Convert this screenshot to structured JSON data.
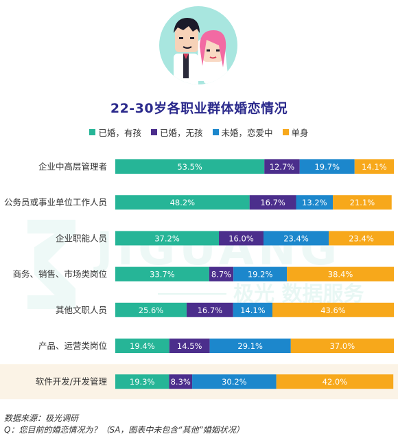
{
  "chart_data": {
    "type": "bar",
    "stacked": true,
    "orientation": "horizontal",
    "title": "22-30岁各职业群体婚恋情况",
    "categories": [
      "企业中高层管理者",
      "公务员或事业单位工作人员",
      "企业职能人员",
      "商务、销售、市场类岗位",
      "其他文职人员",
      "产品、运营类岗位",
      "软件开发/开发管理"
    ],
    "series": [
      {
        "name": "已婚，有孩",
        "color": "#26b597",
        "values": [
          53.5,
          48.2,
          37.2,
          33.7,
          25.6,
          19.4,
          19.3
        ],
        "labels": [
          "53.5%",
          "48.2%",
          "37.2%",
          "33.7%",
          "25.6%",
          "19.4%",
          "19.3%"
        ]
      },
      {
        "name": "已婚，无孩",
        "color": "#4b2e8c",
        "values": [
          12.7,
          16.7,
          16.0,
          8.7,
          16.7,
          14.5,
          8.3
        ],
        "labels": [
          "12.7%",
          "16.7%",
          "16.0%",
          "8.7%",
          "16.7%",
          "14.5%",
          "8.3%"
        ]
      },
      {
        "name": "未婚，恋爱中",
        "color": "#1c87cc",
        "values": [
          19.7,
          13.2,
          23.4,
          19.2,
          14.1,
          29.1,
          30.2
        ],
        "labels": [
          "19.7%",
          "13.2%",
          "23.4%",
          "19.2%",
          "14.1%",
          "29.1%",
          "30.2%"
        ]
      },
      {
        "name": "单身",
        "color": "#f7a81b",
        "values": [
          14.1,
          21.1,
          23.4,
          38.4,
          43.6,
          37.0,
          42.0
        ],
        "labels": [
          "14.1%",
          "21.1%",
          "23.4%",
          "38.4%",
          "43.6%",
          "37.0%",
          "42.0%"
        ]
      }
    ],
    "xlim": [
      0,
      100
    ],
    "highlight_category": "软件开发/开发管理",
    "highlight_color": "#fbf3e6",
    "legend_position": "top",
    "grid": false
  },
  "watermark": {
    "brand": "JIGUANG",
    "tagline": "极光 数据服务"
  },
  "footer": {
    "source": "数据来源：极光调研",
    "question": "Q：您目前的婚恋情况为？（SA，图表中未包含“其他”婚姻状况）"
  }
}
